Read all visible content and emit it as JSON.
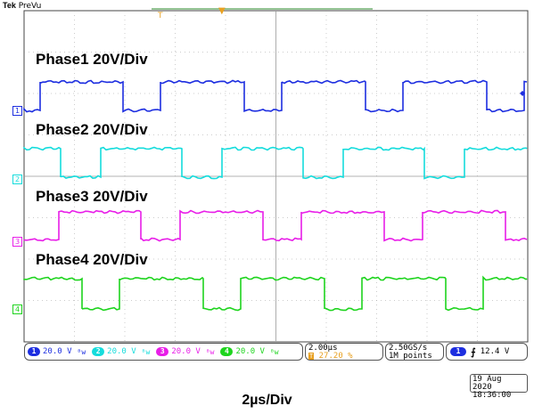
{
  "header": {
    "brand": "Tek",
    "mode": "PreVu"
  },
  "colors": {
    "ch1": "#1d2ee0",
    "ch2": "#15dcdc",
    "ch3": "#e81ee8",
    "ch4": "#1ed41e",
    "grid": "#9a9a9a",
    "marker": "#e8a020"
  },
  "traces": [
    {
      "marker": "1",
      "label": "Phase1 20V/Div"
    },
    {
      "marker": "2",
      "label": "Phase2 20V/Div"
    },
    {
      "marker": "3",
      "label": "Phase3 20V/Div"
    },
    {
      "marker": "4",
      "label": "Phase4 20V/Div"
    }
  ],
  "channels": [
    {
      "num": "1",
      "scale": "20.0 V"
    },
    {
      "num": "2",
      "scale": "20.0 V"
    },
    {
      "num": "3",
      "scale": "20.0 V"
    },
    {
      "num": "4",
      "scale": "20.0 V"
    }
  ],
  "timebase": {
    "scale": "2.00µs",
    "position": "27.20 %"
  },
  "acquisition": {
    "rate": "2.50GS/s",
    "length": "1M points"
  },
  "trigger": {
    "channel": "1",
    "slope_icon": "rising-edge-icon",
    "level": "12.4 V"
  },
  "timestamp": {
    "date": "19 Aug 2020",
    "time": "18:36:00"
  },
  "caption": "2µs/Div"
}
